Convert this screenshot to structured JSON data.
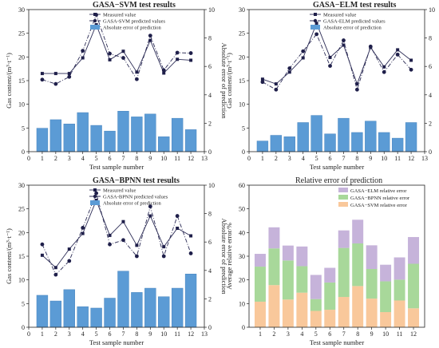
{
  "chart_data": [
    {
      "type": "bar+line",
      "title": "GASA−SVM test results",
      "xlabel": "Test sample number",
      "ylabel": "Gas content/(m³·t⁻¹)",
      "y2label": "Absolute error of prediction",
      "xlim": [
        0,
        13
      ],
      "ylim": [
        0,
        30
      ],
      "y2lim": [
        0,
        10
      ],
      "x_ticks": [
        0,
        1,
        2,
        3,
        4,
        5,
        6,
        7,
        8,
        9,
        10,
        11,
        12,
        13
      ],
      "y_ticks": [
        0,
        5,
        10,
        15,
        20,
        25,
        30
      ],
      "y2_ticks": [
        0,
        2,
        4,
        6,
        8,
        10
      ],
      "x": [
        1,
        2,
        3,
        4,
        5,
        6,
        7,
        8,
        9,
        10,
        11,
        12
      ],
      "legend": [
        "Measured value",
        "GASA-SVM predicted values",
        "Absolute error of prediction"
      ],
      "series": [
        {
          "name": "Measured value",
          "kind": "line",
          "axis": "left",
          "values": [
            16.5,
            16.5,
            16.5,
            19.8,
            26.8,
            19.4,
            21.2,
            16.8,
            23.5,
            16.6,
            19.5,
            19.3
          ]
        },
        {
          "name": "GASA-SVM predicted values",
          "kind": "line",
          "axis": "left",
          "values": [
            15.2,
            14.3,
            15.8,
            21.3,
            28.9,
            20.7,
            19.8,
            15.3,
            24.5,
            17.2,
            20.9,
            20.8
          ]
        },
        {
          "name": "Absolute error of prediction",
          "kind": "bar",
          "axis": "right",
          "values": [
            1.65,
            2.25,
            1.95,
            2.75,
            1.85,
            1.45,
            2.85,
            2.45,
            2.65,
            1.05,
            2.35,
            1.55
          ]
        }
      ]
    },
    {
      "type": "bar+line",
      "title": "GASA−ELM test results",
      "xlabel": "Test sample number",
      "ylabel": "Gas content/(m³·t⁻¹)",
      "y2label": "Absolute error of prediction",
      "xlim": [
        0,
        13
      ],
      "ylim": [
        0,
        30
      ],
      "y2lim": [
        0,
        10
      ],
      "x_ticks": [
        0,
        1,
        2,
        3,
        4,
        5,
        6,
        7,
        8,
        9,
        10,
        11,
        12,
        13
      ],
      "y_ticks": [
        0,
        5,
        10,
        15,
        20,
        25,
        30
      ],
      "y2_ticks": [
        0,
        2,
        4,
        6,
        8,
        10
      ],
      "x": [
        1,
        2,
        3,
        4,
        5,
        6,
        7,
        8,
        9,
        10,
        11,
        12
      ],
      "legend": [
        "Measured value",
        "GASA-ELM predicted values",
        "Absolute error of prediction"
      ],
      "series": [
        {
          "name": "Measured value",
          "kind": "line",
          "axis": "left",
          "values": [
            15.3,
            14.3,
            16.8,
            19.8,
            27.1,
            19.9,
            22.5,
            14.3,
            22.0,
            17.9,
            21.5,
            19.3
          ]
        },
        {
          "name": "GASA-ELM predicted values",
          "kind": "line",
          "axis": "left",
          "values": [
            14.7,
            13.1,
            17.6,
            21.2,
            24.8,
            18.1,
            23.5,
            13.1,
            22.2,
            16.8,
            20.5,
            17.3
          ]
        },
        {
          "name": "Absolute error of prediction",
          "kind": "bar",
          "axis": "right",
          "values": [
            0.75,
            1.15,
            1.05,
            2.05,
            2.55,
            1.25,
            2.35,
            1.35,
            2.15,
            1.35,
            0.95,
            2.05
          ]
        }
      ]
    },
    {
      "type": "bar+line",
      "title": "GASA−BPNN test results",
      "xlabel": "Test sample number",
      "ylabel": "Gas content/(m³·t⁻¹)",
      "y2label": "Absolute error of prediction",
      "xlim": [
        0,
        13
      ],
      "ylim": [
        0,
        30
      ],
      "y2lim": [
        0,
        10
      ],
      "x_ticks": [
        0,
        1,
        2,
        3,
        4,
        5,
        6,
        7,
        8,
        9,
        10,
        11,
        12,
        13
      ],
      "y_ticks": [
        0,
        5,
        10,
        15,
        20,
        25,
        30
      ],
      "y2_ticks": [
        0,
        2,
        4,
        6,
        8,
        10
      ],
      "x": [
        1,
        2,
        3,
        4,
        5,
        6,
        7,
        8,
        9,
        10,
        11,
        12
      ],
      "legend": [
        "Measured value",
        "GASA-BPNN predicted values",
        "Absolute error of prediction"
      ],
      "series": [
        {
          "name": "Measured value",
          "kind": "line",
          "axis": "left",
          "values": [
            15.2,
            12.6,
            16.5,
            19.8,
            26.8,
            19.4,
            22.3,
            17.3,
            23.5,
            17.0,
            20.9,
            19.3
          ]
        },
        {
          "name": "GASA-BPNN predicted values",
          "kind": "line",
          "axis": "left",
          "values": [
            17.5,
            11.1,
            14.0,
            21.0,
            28.3,
            17.5,
            18.4,
            15.0,
            25.5,
            15.0,
            23.5,
            15.6
          ]
        },
        {
          "name": "Absolute error of prediction",
          "kind": "bar",
          "axis": "right",
          "values": [
            2.25,
            1.85,
            2.65,
            1.45,
            1.35,
            2.05,
            3.95,
            2.45,
            2.75,
            2.15,
            2.75,
            3.75
          ]
        }
      ]
    },
    {
      "type": "stacked-bar",
      "title": "Relative error of prediction",
      "xlabel": "Test sample number",
      "ylabel": "Average relative error/%",
      "ylim": [
        0,
        60
      ],
      "y_ticks": [
        0,
        10,
        20,
        30,
        40,
        50,
        60
      ],
      "categories": [
        "1",
        "2",
        "3",
        "4",
        "5",
        "6",
        "7",
        "8",
        "9",
        "10",
        "11",
        "12"
      ],
      "legend": [
        "GASA−ELM relative error",
        "GASA−BPNN relative error",
        "GASA−SVM relative error"
      ],
      "series": [
        {
          "name": "GASA−SVM relative error",
          "values": [
            10.8,
            17.8,
            11.7,
            14.6,
            6.9,
            7.4,
            12.8,
            17.4,
            12.1,
            6.4,
            11.3,
            8.0
          ]
        },
        {
          "name": "GASA−BPNN relative error",
          "values": [
            14.8,
            15.5,
            16.5,
            11.2,
            5.0,
            11.5,
            20.7,
            18.0,
            12.5,
            13.0,
            8.8,
            18.8
          ]
        },
        {
          "name": "GASA−ELM relative error",
          "values": [
            5.4,
            8.9,
            6.3,
            8.3,
            10.2,
            6.2,
            7.4,
            10.0,
            10.0,
            7.0,
            9.4,
            11.3
          ]
        }
      ]
    }
  ]
}
